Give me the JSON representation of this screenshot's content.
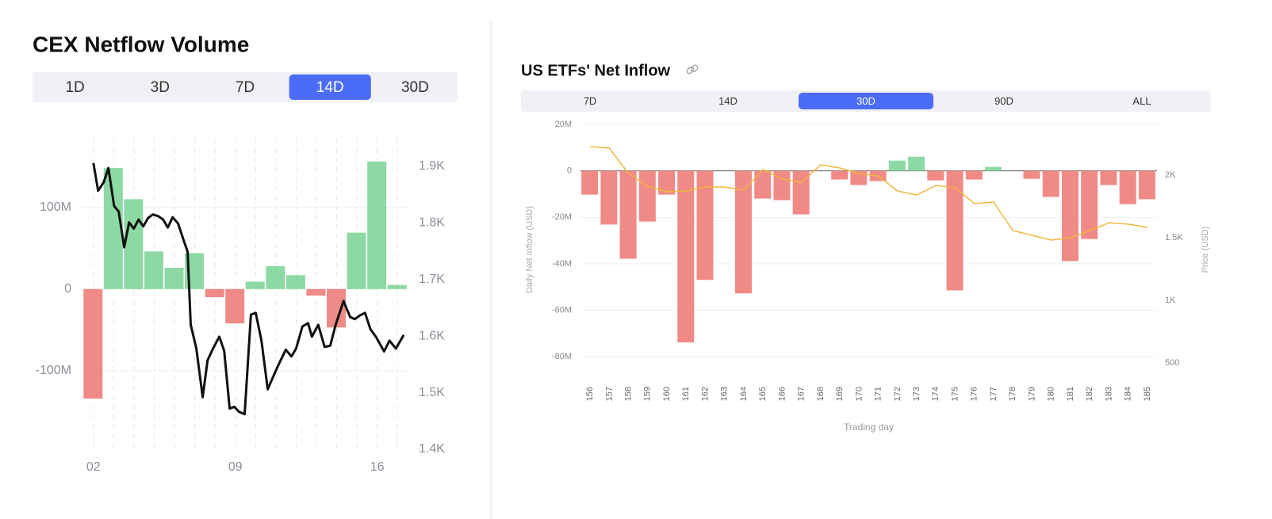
{
  "chart_data": [
    {
      "type": "combo",
      "title": "CEX Netflow Volume",
      "tabs": [
        "1D",
        "3D",
        "7D",
        "14D",
        "30D"
      ],
      "selected_tab": "14D",
      "xlim": [
        1.5,
        17.5
      ],
      "xticks": [
        {
          "value": 2,
          "label": "02"
        },
        {
          "value": 9,
          "label": "09"
        },
        {
          "value": 16,
          "label": "16"
        }
      ],
      "ylim": [
        -196,
        184
      ],
      "yticks": [
        {
          "value": -100,
          "label": "-100M"
        },
        0,
        {
          "value": 100,
          "label": "100M"
        }
      ],
      "y2lim": [
        1400,
        1949
      ],
      "y2ticks": [
        {
          "value": 1400,
          "label": "1.4K"
        },
        {
          "value": 1500,
          "label": "1.5K"
        },
        {
          "value": 1600,
          "label": "1.6K"
        },
        {
          "value": 1700,
          "label": "1.7K"
        },
        {
          "value": 1800,
          "label": "1.8K"
        },
        {
          "value": 1900,
          "label": "1.9K"
        }
      ],
      "grid": true,
      "series": [
        {
          "type": "bar",
          "positive_color": "#8dd9a4",
          "negative_color": "#f08a86",
          "x": [
            2,
            3,
            4,
            5,
            6,
            7,
            8,
            9,
            10,
            11,
            12,
            13,
            14,
            15,
            16,
            17
          ],
          "values": [
            -134,
            148,
            110,
            46,
            26,
            44,
            -10,
            -42,
            9,
            28,
            17,
            -8,
            -47,
            69,
            156,
            5
          ]
        },
        {
          "type": "line",
          "axis": "y2",
          "color": "#111111",
          "x": [
            2.0,
            2.23,
            2.51,
            2.74,
            3.02,
            3.25,
            3.52,
            3.76,
            3.99,
            4.23,
            4.46,
            4.7,
            4.93,
            5.2,
            5.44,
            5.67,
            5.91,
            6.18,
            6.41,
            6.65,
            6.8,
            7.08,
            7.39,
            7.63,
            7.9,
            8.21,
            8.45,
            8.72,
            8.95,
            9.19,
            9.46,
            9.77,
            10.01,
            10.29,
            10.6,
            10.83,
            11.14,
            11.49,
            11.77,
            12.0,
            12.31,
            12.59,
            12.78,
            13.09,
            13.41,
            13.68,
            13.95,
            14.34,
            14.66,
            14.89,
            15.16,
            15.4,
            15.67,
            15.95,
            16.34,
            16.61,
            16.92,
            17.31
          ],
          "values": [
            1906,
            1857,
            1872,
            1897,
            1830,
            1820,
            1757,
            1801,
            1790,
            1806,
            1794,
            1809,
            1815,
            1812,
            1806,
            1792,
            1810,
            1799,
            1774,
            1749,
            1620,
            1578,
            1492,
            1557,
            1578,
            1599,
            1574,
            1472,
            1475,
            1466,
            1462,
            1638,
            1641,
            1592,
            1506,
            1525,
            1550,
            1576,
            1564,
            1578,
            1617,
            1623,
            1599,
            1620,
            1581,
            1583,
            1620,
            1662,
            1634,
            1630,
            1637,
            1641,
            1612,
            1598,
            1573,
            1592,
            1578,
            1602
          ]
        }
      ]
    },
    {
      "type": "combo",
      "title": "US ETFs' Net Inflow",
      "tabs": [
        "7D",
        "14D",
        "30D",
        "90D",
        "ALL"
      ],
      "selected_tab": "30D",
      "categories": [
        "156",
        "157",
        "158",
        "159",
        "160",
        "161",
        "162",
        "163",
        "164",
        "165",
        "166",
        "167",
        "168",
        "169",
        "170",
        "171",
        "172",
        "173",
        "174",
        "175",
        "176",
        "177",
        "178",
        "179",
        "180",
        "181",
        "182",
        "183",
        "184",
        "185"
      ],
      "x_label": "Trading day",
      "y_label": "Daily Net Inflow (USD)",
      "y2_label": "Price (USD)",
      "ylim": [
        -85,
        20
      ],
      "yticks": [
        {
          "value": -80,
          "label": "-80M"
        },
        {
          "value": -60,
          "label": "-60M"
        },
        {
          "value": -40,
          "label": "-40M"
        },
        {
          "value": -20,
          "label": "-20M"
        },
        0,
        {
          "value": 20,
          "label": "20M"
        }
      ],
      "y2lim": [
        456,
        2405
      ],
      "y2ticks": [
        500,
        {
          "value": 1000,
          "label": "1K"
        },
        {
          "value": 1500,
          "label": "1.5K"
        },
        {
          "value": 2000,
          "label": "2K"
        }
      ],
      "grid": true,
      "series": [
        {
          "type": "bar",
          "positive_color": "#8dd9a4",
          "negative_color": "#f08a86",
          "values": [
            -10.2,
            -23.1,
            -37.8,
            -21.8,
            -10.2,
            -73.8,
            -46.9,
            0,
            -52.7,
            -11.9,
            -12.6,
            -18.7,
            0,
            -3.7,
            -6.1,
            -4.4,
            4.4,
            6.1,
            -4.1,
            -51.4,
            -3.7,
            1.7,
            0,
            -3.4,
            -11.2,
            -38.8,
            -29.3,
            -6.1,
            -14.3,
            -12.2
          ]
        },
        {
          "type": "line",
          "axis": "y2",
          "color": "#f0b73e",
          "values": [
            2228,
            2215,
            2013,
            1911,
            1867,
            1873,
            1905,
            1905,
            1880,
            2044,
            1968,
            1943,
            2082,
            2057,
            2013,
            1994,
            1873,
            1842,
            1918,
            1899,
            1772,
            1785,
            1557,
            1519,
            1481,
            1500,
            1557,
            1620,
            1608,
            1582
          ]
        }
      ]
    }
  ]
}
